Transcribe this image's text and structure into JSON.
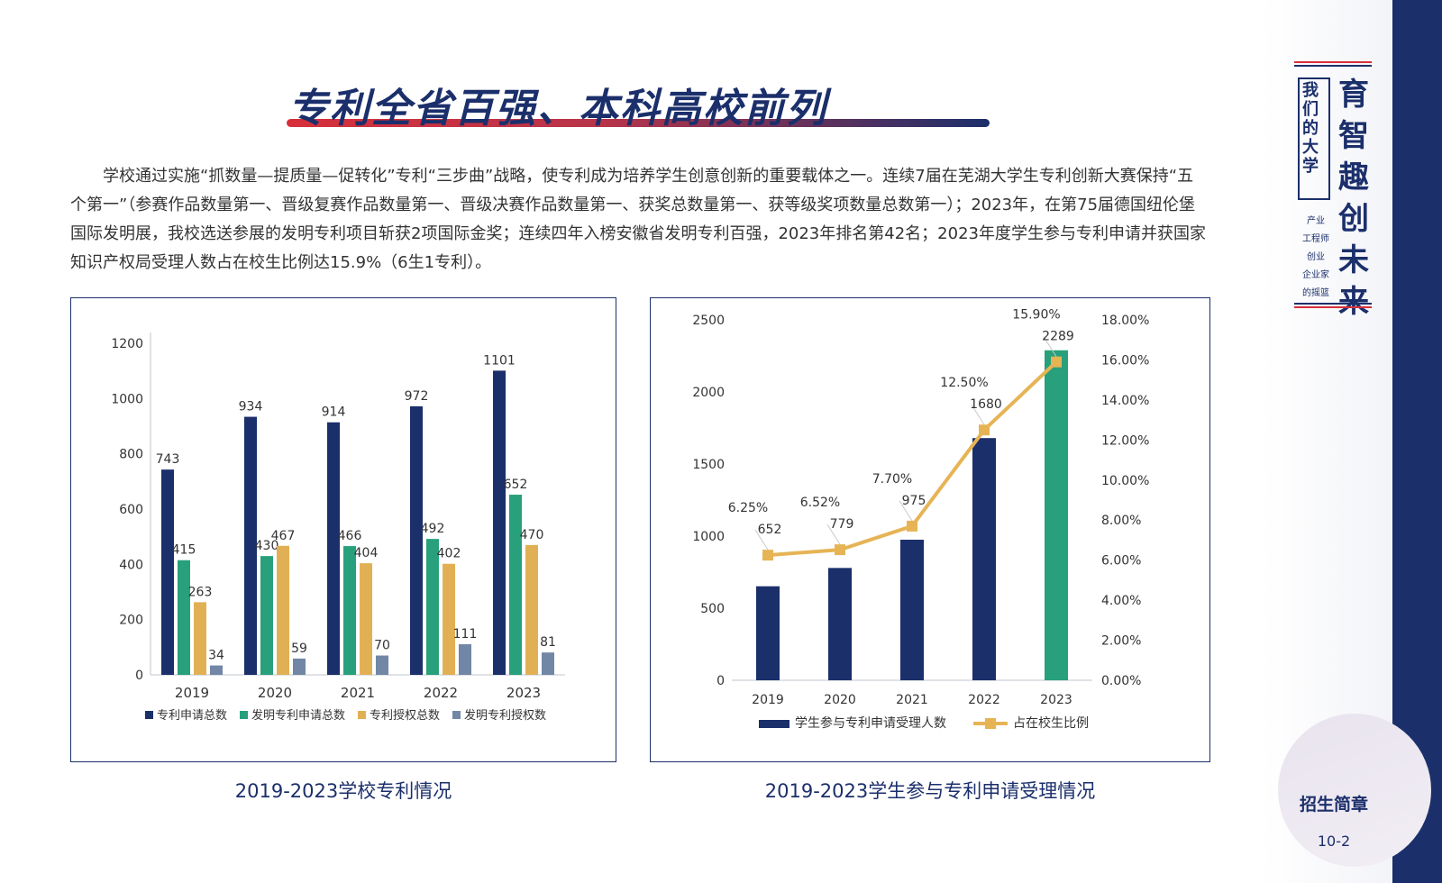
{
  "page": {
    "title": "专利全省百强、本科高校前列",
    "intro": "学校通过实施“抓数量—提质量—促转化”专利“三步曲”战略，使专利成为培养学生创意创新的重要载体之一。连续7届在芜湖大学生专利创新大赛保持“五个第一”（参赛作品数量第一、晋级复赛作品数量第一、晋级决赛作品数量第一、获奖总数量第一、获等级奖项数量总数第一）；2023年，在第75届德国纽伦堡国际发明展，我校选送参展的发明专利项目斩获2项国际金奖；连续四年入榜安徽省发明专利百强，2023年排名第42名；2023年度学生参与专利申请并获国家知识产权局受理人数占在校生比例达15.9%（6生1专利）。",
    "caption_left": "2019-2023学校专利情况",
    "caption_right": "2019-2023学生参与专利申请受理情况",
    "brand_vertical": "我们的大学",
    "brand_big": "育智趣创未来",
    "brand_small": [
      "产业",
      "工程师",
      "创业",
      "企业家",
      "的摇篮"
    ],
    "brochure": "招生简章",
    "page_number": "10-2",
    "colors": {
      "navy": "#1b2f6b",
      "green": "#27a07b",
      "gold": "#e2b054",
      "slate": "#7187a5",
      "red": "#d7303b",
      "line": "#e6b455"
    }
  },
  "chart_data": [
    {
      "type": "bar",
      "categories": [
        "2019",
        "2020",
        "2021",
        "2022",
        "2023"
      ],
      "series": [
        {
          "name": "专利申请总数",
          "values": [
            743,
            934,
            914,
            972,
            1101
          ],
          "color": "#1b2f6b"
        },
        {
          "name": "发明专利申请总数",
          "values": [
            415,
            430,
            466,
            492,
            652
          ],
          "color": "#27a07b"
        },
        {
          "name": "专利授权总数",
          "values": [
            263,
            467,
            404,
            402,
            470
          ],
          "color": "#e2b054"
        },
        {
          "name": "发明专利授权数",
          "values": [
            34,
            59,
            70,
            111,
            81
          ],
          "color": "#7187a5"
        }
      ],
      "yticks": [
        "0",
        "200",
        "400",
        "600",
        "800",
        "1000",
        "1200"
      ],
      "ylim": [
        0,
        1200
      ],
      "legend": "bottom",
      "grid": false
    },
    {
      "type": "bar",
      "categories": [
        "2019",
        "2020",
        "2021",
        "2022",
        "2023"
      ],
      "series": [
        {
          "name": "学生参与专利申请受理人数",
          "values": [
            652,
            779,
            975,
            1680,
            2289
          ],
          "labels": [
            "652",
            "779",
            "975",
            "1680",
            "2289"
          ],
          "color": "#1b2f6b",
          "highlight_color": "#27a07b"
        },
        {
          "name": "占在校生比例",
          "type": "line",
          "axis": "right",
          "values": [
            6.25,
            6.52,
            7.7,
            12.5,
            15.9
          ],
          "labels": [
            "6.25%",
            "6.52%",
            "7.70%",
            "12.50%",
            "15.90%"
          ],
          "color": "#e6b455"
        }
      ],
      "yticks_left": [
        "0",
        "500",
        "1000",
        "1500",
        "2000",
        "2500"
      ],
      "ylim_left": [
        0,
        2500
      ],
      "yticks_right": [
        "0.00%",
        "2.00%",
        "4.00%",
        "6.00%",
        "8.00%",
        "10.00%",
        "12.00%",
        "14.00%",
        "16.00%",
        "18.00%"
      ],
      "ylim_right": [
        0,
        18
      ],
      "legend": "bottom",
      "grid": false
    }
  ]
}
